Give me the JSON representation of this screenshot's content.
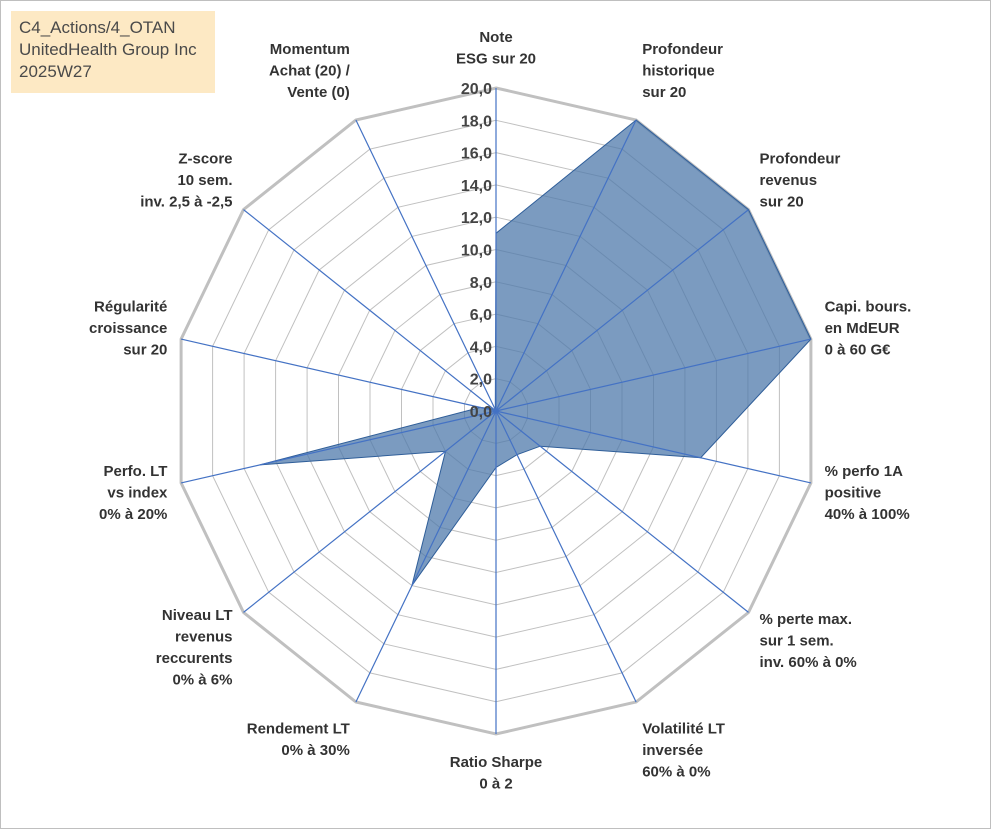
{
  "header": {
    "line1": "C4_Actions/4_OTAN",
    "line2": "UnitedHealth Group Inc",
    "line3": "2025W27"
  },
  "chart_data": {
    "type": "radar",
    "rmin": 0,
    "rmax": 20,
    "tick_step": 2,
    "tick_labels": [
      "0,0",
      "2,0",
      "4,0",
      "6,0",
      "8,0",
      "10,0",
      "12,0",
      "14,0",
      "16,0",
      "18,0",
      "20,0"
    ],
    "grid": true,
    "axes": [
      [
        "Note",
        "ESG sur 20"
      ],
      [
        "Profondeur",
        "historique",
        "sur 20"
      ],
      [
        "Profondeur",
        "revenus",
        "sur 20"
      ],
      [
        "Capi. bours.",
        "en MdEUR",
        "0 à 60 G€"
      ],
      [
        "% perfo 1A",
        "positive",
        "40% à 100%"
      ],
      [
        "% perte max.",
        "sur 1 sem.",
        "inv. 60% à 0%"
      ],
      [
        "Volatilité LT",
        "inversée",
        "60% à 0%"
      ],
      [
        "Ratio Sharpe",
        "0 à 2"
      ],
      [
        "Rendement LT",
        "0% à 30%"
      ],
      [
        "Niveau LT",
        "revenus",
        "reccurents",
        "0% à 6%"
      ],
      [
        "Perfo. LT",
        "vs index",
        "0% à 20%"
      ],
      [
        "Régularité",
        "croissance",
        "sur 20"
      ],
      [
        "Z-score",
        "10 sem.",
        "inv. 2,5 à -2,5"
      ],
      [
        "Momentum",
        "Achat (20) /",
        "Vente (0)"
      ]
    ],
    "series": [
      {
        "values": [
          11,
          20,
          20,
          20,
          13,
          3.5,
          3,
          3.5,
          12,
          4,
          15,
          1,
          0.2,
          0.1
        ],
        "fill": "#4f79ab",
        "fill_opacity": 0.75,
        "stroke": "#2f5e99"
      }
    ],
    "colors": {
      "grid": "#c0c0c0",
      "spoke": "#4472c4"
    }
  }
}
